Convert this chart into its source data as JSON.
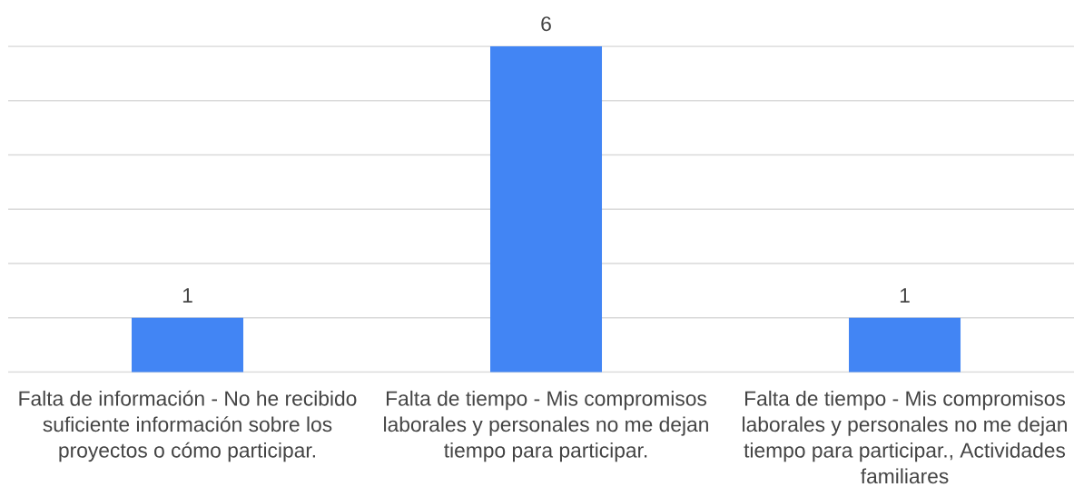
{
  "chart_data": {
    "type": "bar",
    "categories": [
      "Falta de información - No he recibido suficiente información sobre los proyectos o cómo participar.",
      "Falta de tiempo - Mis compromisos laborales y personales no me dejan tiempo para participar.",
      "Falta de tiempo - Mis compromisos laborales y personales no me dejan tiempo para participar., Actividades familiares"
    ],
    "values": [
      1,
      6,
      1
    ],
    "color": "#4285f4",
    "ylim": [
      0,
      6
    ],
    "yticks": [
      {
        "value": 0,
        "label": null
      },
      {
        "value": 1,
        "label": null
      },
      {
        "value": 2,
        "label": null
      },
      {
        "value": 3,
        "label": null
      },
      {
        "value": 4,
        "label": null
      },
      {
        "value": 5,
        "label": null
      },
      {
        "value": 6,
        "label": null
      }
    ],
    "grid": "y",
    "tick_labels": "x",
    "data_labels": true
  }
}
